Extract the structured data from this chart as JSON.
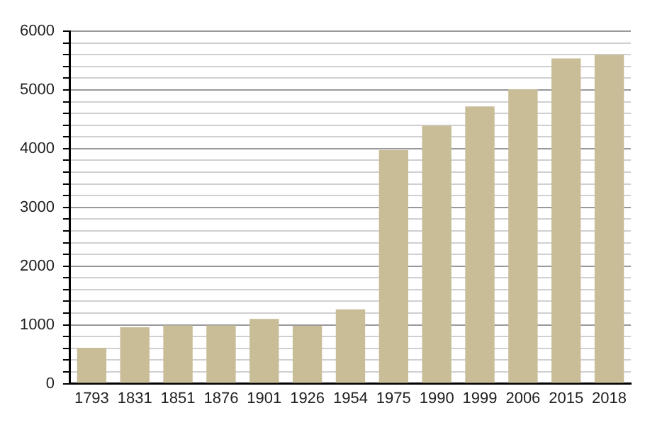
{
  "chart_data": {
    "type": "bar",
    "categories": [
      "1793",
      "1831",
      "1851",
      "1876",
      "1901",
      "1926",
      "1954",
      "1975",
      "1990",
      "1999",
      "2006",
      "2015",
      "2018"
    ],
    "values": [
      610,
      960,
      990,
      990,
      1100,
      985,
      1265,
      3975,
      4390,
      4720,
      5010,
      5535,
      5600
    ],
    "color": "#c8bd97",
    "ylim": [
      0,
      6000
    ],
    "yticks": [
      0,
      {
        "value": 200,
        "label": null
      },
      {
        "value": 400,
        "label": null
      },
      {
        "value": 600,
        "label": null
      },
      {
        "value": 800,
        "label": null
      },
      1000,
      {
        "value": 1200,
        "label": null
      },
      {
        "value": 1400,
        "label": null
      },
      {
        "value": 1600,
        "label": null
      },
      {
        "value": 1800,
        "label": null
      },
      2000,
      {
        "value": 2200,
        "label": null
      },
      {
        "value": 2400,
        "label": null
      },
      {
        "value": 2600,
        "label": null
      },
      {
        "value": 2800,
        "label": null
      },
      3000,
      {
        "value": 3200,
        "label": null
      },
      {
        "value": 3400,
        "label": null
      },
      {
        "value": 3600,
        "label": null
      },
      {
        "value": 3800,
        "label": null
      },
      4000,
      {
        "value": 4200,
        "label": null
      },
      {
        "value": 4400,
        "label": null
      },
      {
        "value": 4600,
        "label": null
      },
      {
        "value": 4800,
        "label": null
      },
      5000,
      {
        "value": 5200,
        "label": null
      },
      {
        "value": 5400,
        "label": null
      },
      {
        "value": 5600,
        "label": null
      },
      {
        "value": 5800,
        "label": null
      },
      6000
    ],
    "grid": "y"
  }
}
